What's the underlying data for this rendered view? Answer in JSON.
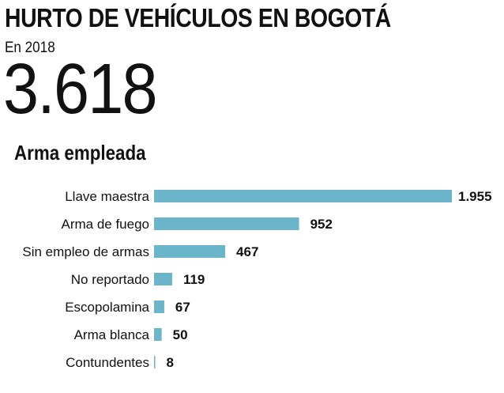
{
  "header": {
    "title": "HURTO DE VEHÍCULOS EN BOGOTÁ",
    "subtitle": "En 2018",
    "total": "3.618",
    "section_title": "Arma empleada"
  },
  "colors": {
    "bar": "#6bb5ca",
    "text": "#111111"
  },
  "chart_data": {
    "type": "bar",
    "orientation": "horizontal",
    "title": "Arma empleada",
    "xlabel": "",
    "ylabel": "",
    "grid": false,
    "categories": [
      "Llave maestra",
      "Arma de fuego",
      "Sin empleo de armas",
      "No reportado",
      "Escopolamina",
      "Arma blanca",
      "Contundentes"
    ],
    "values": [
      1955,
      952,
      467,
      119,
      67,
      50,
      8
    ],
    "value_labels": [
      "1.955",
      "952",
      "467",
      "119",
      "67",
      "50",
      "8"
    ]
  }
}
